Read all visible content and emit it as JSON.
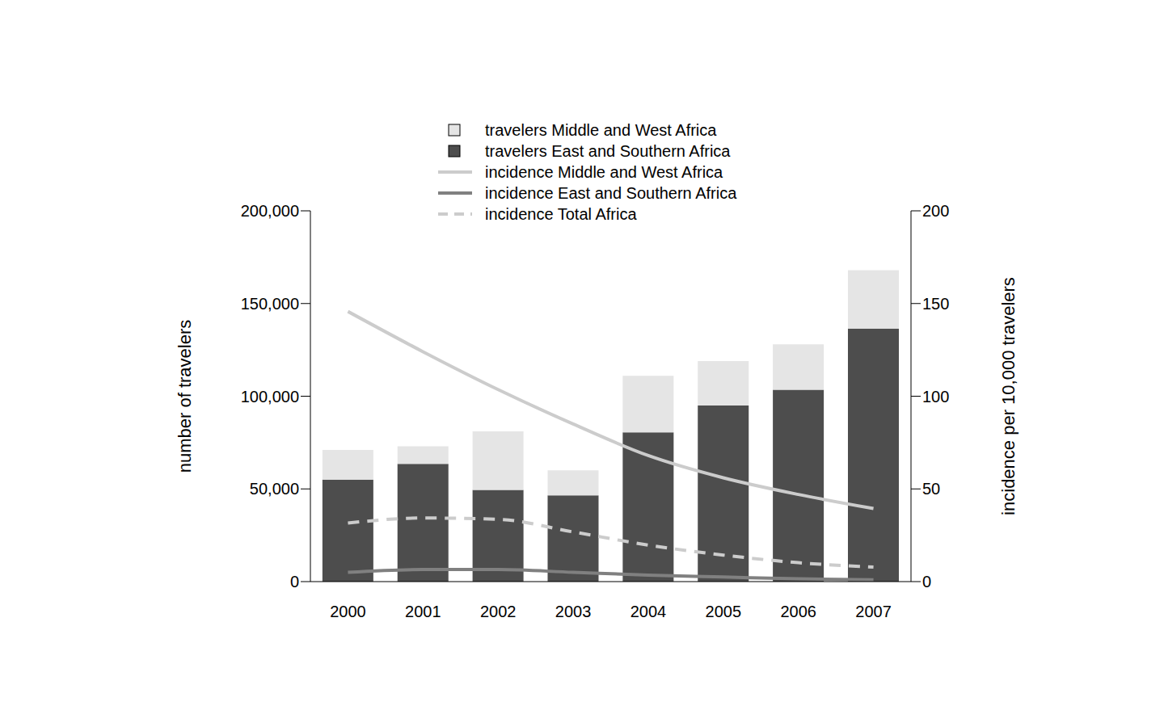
{
  "chart_data": {
    "type": "bar",
    "stacked": true,
    "categories": [
      "2000",
      "2001",
      "2002",
      "2003",
      "2004",
      "2005",
      "2006",
      "2007"
    ],
    "y_label": "number of travelers",
    "y2_label": "incidence per 10,000 travelers",
    "ylim": [
      0,
      200000
    ],
    "yticks": [
      0,
      {
        "value": 50000,
        "label": "50,000"
      },
      {
        "value": 100000,
        "label": "100,000"
      },
      {
        "value": 150000,
        "label": "150,000"
      },
      {
        "value": 200000,
        "label": "200,000"
      }
    ],
    "y2lim": [
      0,
      200
    ],
    "y2ticks": [
      0,
      50,
      100,
      150,
      200
    ],
    "grid": false,
    "legend": "top",
    "series": [
      {
        "name": "travelers Middle and West Africa",
        "type": "bar",
        "color": "#e5e5e5",
        "values": [
          16000,
          9500,
          31500,
          13500,
          30500,
          24000,
          24500,
          31500
        ]
      },
      {
        "name": "travelers East and Southern Africa",
        "type": "bar",
        "color": "#4d4d4d",
        "values": [
          55000,
          63500,
          49500,
          46500,
          80500,
          95000,
          103500,
          136500
        ]
      },
      {
        "name": "incidence Middle and West Africa",
        "type": "line",
        "axis": "y2",
        "color": "#cccccc",
        "line_style": "solid",
        "values": [
          145.7,
          124,
          103.6,
          85,
          68,
          56,
          47,
          39.4
        ]
      },
      {
        "name": "incidence East and Southern Africa",
        "type": "line",
        "axis": "y2",
        "color": "#808080",
        "line_style": "solid",
        "values": [
          5,
          6.5,
          6.5,
          5,
          3.5,
          2.5,
          1.5,
          1
        ]
      },
      {
        "name": "incidence Total Africa",
        "type": "line",
        "axis": "y2",
        "color": "#cccccc",
        "line_style": "dashed",
        "values": [
          31.6,
          34.3,
          33.6,
          26.8,
          19.7,
          14.3,
          10.2,
          7.8
        ]
      }
    ]
  }
}
